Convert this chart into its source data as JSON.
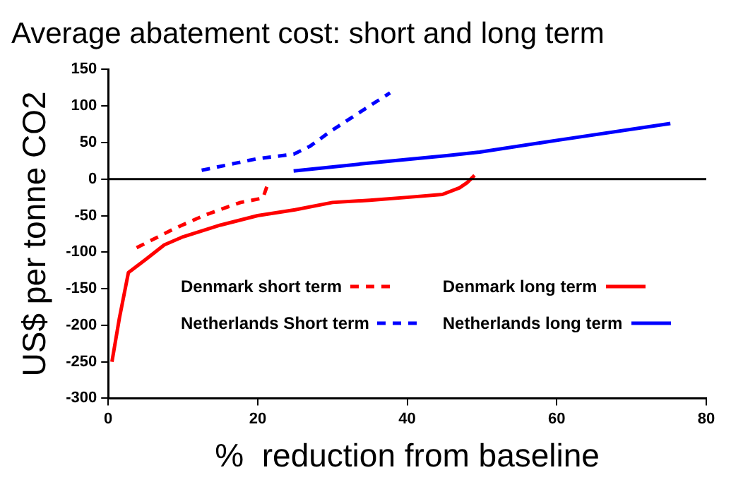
{
  "chart_data": {
    "type": "line",
    "title": "Average abatement cost: short and long term",
    "xlabel": "%  reduction from baseline",
    "ylabel": "US$ per tonne CO2",
    "xlim": [
      0,
      80
    ],
    "xticks": [
      0,
      20,
      40,
      60,
      80
    ],
    "ylim": [
      -300,
      150
    ],
    "yticks": [
      -300,
      -250,
      -200,
      -150,
      -100,
      -50,
      0,
      50,
      100,
      150
    ],
    "grid": false,
    "legend": "bottom",
    "marker": "none",
    "ref_lines": [
      {
        "axis": "y",
        "value": 0,
        "color": "#000000"
      }
    ],
    "series": [
      {
        "name": "Denmark short term",
        "color": "#ff0000",
        "line_style": "dashed",
        "x": [
          3.8,
          8.8,
          13,
          17.7,
          20.7,
          21.4
        ],
        "values": [
          -94,
          -68,
          -49,
          -32,
          -26,
          -5
        ]
      },
      {
        "name": "Denmark long term",
        "color": "#ff0000",
        "line_style": "solid",
        "x": [
          0.5,
          1.5,
          2.7,
          5,
          7.5,
          10,
          15,
          20,
          25,
          30,
          35,
          40,
          44.7,
          47,
          48,
          49
        ],
        "values": [
          -250,
          -190,
          -128,
          -110,
          -90,
          -79,
          -63,
          -50,
          -42,
          -32,
          -29,
          -25,
          -21,
          -12,
          -5,
          5
        ]
      },
      {
        "name": "Netherlands Short term",
        "color": "#0000ff",
        "line_style": "dashed",
        "x": [
          12.5,
          20,
          24.8,
          27,
          29.7,
          34.5,
          37.7
        ],
        "values": [
          12,
          28,
          34,
          45,
          65,
          97,
          118
        ]
      },
      {
        "name": "Netherlands long term",
        "color": "#0000ff",
        "line_style": "solid",
        "x": [
          24.8,
          35,
          45.3,
          49.7,
          60,
          75.2
        ],
        "values": [
          11,
          22,
          32,
          37,
          53,
          76
        ]
      }
    ]
  }
}
